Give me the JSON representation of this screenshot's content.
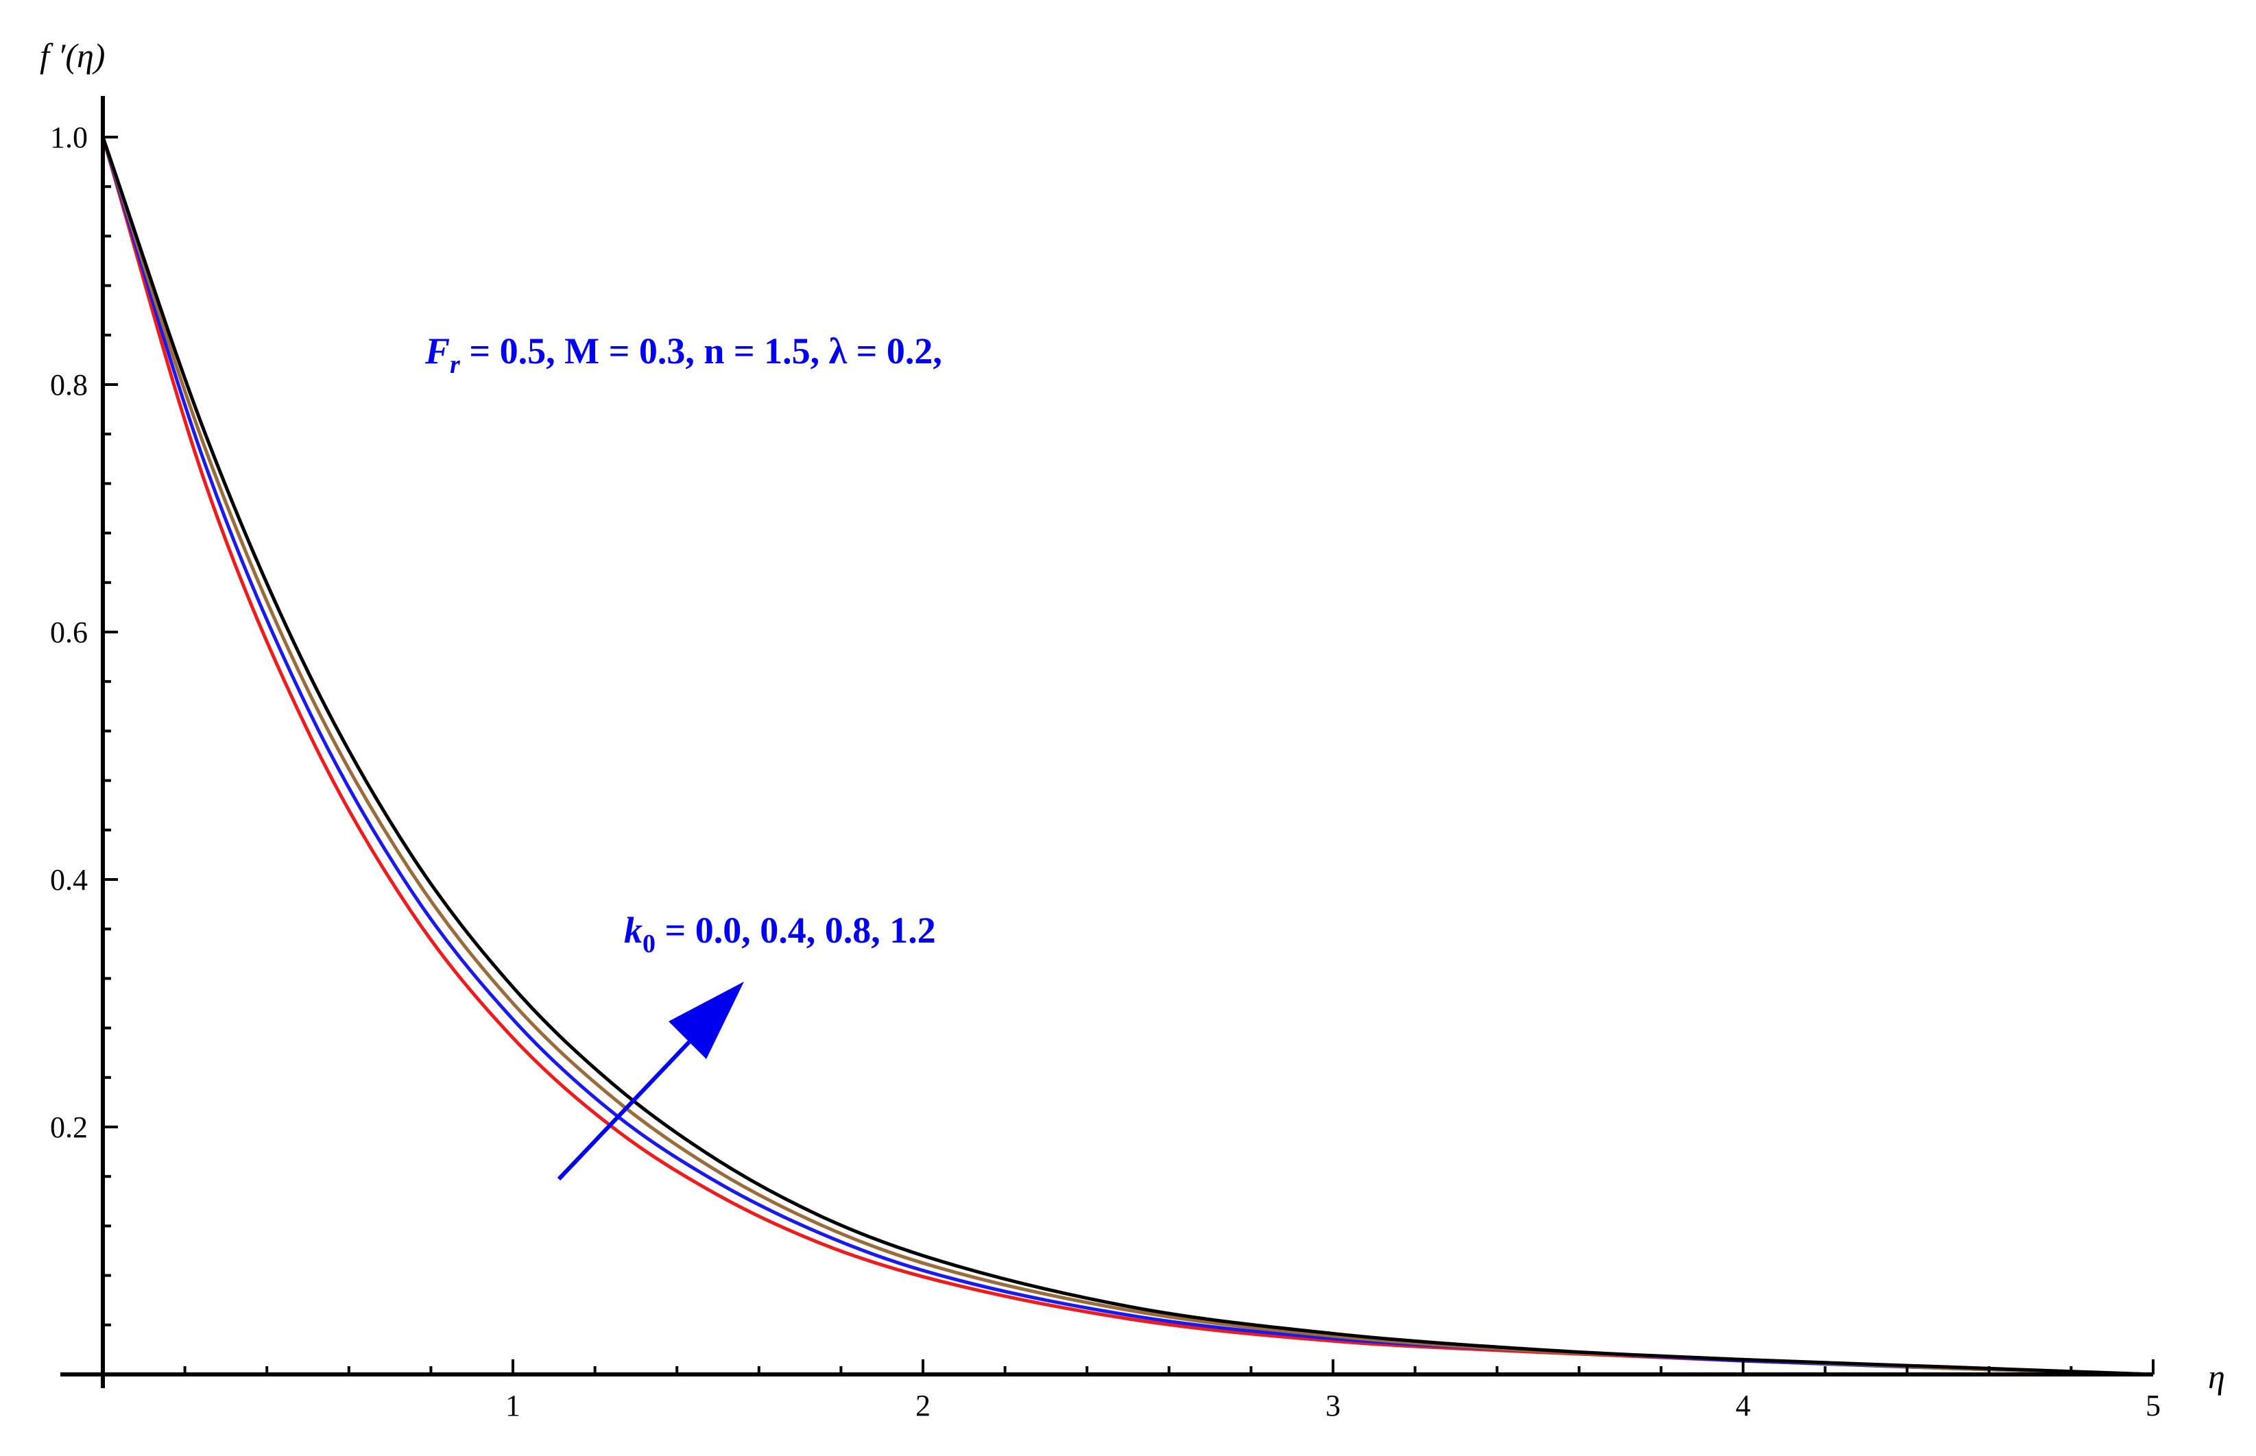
{
  "chart_data": {
    "type": "line",
    "title": "",
    "xlabel": "η",
    "ylabel": "f ′(η)",
    "xlim": [
      0,
      5
    ],
    "ylim": [
      0,
      1.0
    ],
    "x_ticks": [
      1,
      2,
      3,
      4,
      5
    ],
    "x_tick_labels": [
      "1",
      "2",
      "3",
      "4",
      "5"
    ],
    "y_ticks": [
      0.2,
      0.4,
      0.6,
      0.8,
      1.0
    ],
    "y_tick_labels": [
      "0.2",
      "0.4",
      "0.6",
      "0.8",
      "1.0"
    ],
    "grid": false,
    "x": [
      0,
      0.25,
      0.5,
      0.75,
      1.0,
      1.25,
      1.5,
      1.75,
      2.0,
      2.5,
      3.0,
      3.5,
      4.0,
      4.5,
      5.0
    ],
    "series": [
      {
        "color": "#ee1c1c",
        "values": [
          1.0,
          0.72,
          0.52,
          0.375,
          0.272,
          0.198,
          0.145,
          0.106,
          0.079,
          0.045,
          0.027,
          0.018,
          0.011,
          0.005,
          0.0
        ]
      },
      {
        "color": "#1a1aee",
        "values": [
          1.0,
          0.735,
          0.538,
          0.392,
          0.287,
          0.21,
          0.155,
          0.114,
          0.084,
          0.048,
          0.029,
          0.019,
          0.011,
          0.005,
          0.0
        ]
      },
      {
        "color": "#9b6b3b",
        "values": [
          1.0,
          0.748,
          0.553,
          0.407,
          0.3,
          0.222,
          0.164,
          0.121,
          0.09,
          0.052,
          0.031,
          0.019,
          0.012,
          0.005,
          0.0
        ]
      },
      {
        "color": "#000000",
        "values": [
          1.0,
          0.76,
          0.568,
          0.421,
          0.313,
          0.233,
          0.173,
          0.128,
          0.096,
          0.055,
          0.033,
          0.02,
          0.012,
          0.006,
          0.0
        ]
      }
    ],
    "annotations": {
      "params_prefix": "F",
      "params_sub": "r",
      "params_rest": " =  0.5, M = 0.3, n = 1.5, λ = 0.2,",
      "k_prefix": "k",
      "k_sub": "0",
      "k_rest": " = 0.0, 0.4, 0.8, 1.2",
      "arrow_color": "#0000ee"
    }
  }
}
